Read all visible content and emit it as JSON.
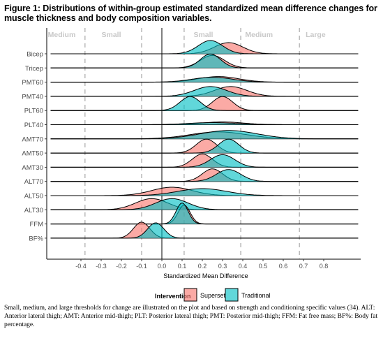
{
  "figure": {
    "title": "Figure 1: Distributions of within-group estimated standardized mean difference changes for muscle thickness and body composition variables.",
    "caption": "Small, medium, and large thresholds for change are illustrated on the plot and based on strength and conditioning specific values (34). ALT: Anterior lateral thigh; AMT: Anterior mid-thigh; PLT: Posterior lateral thigh; PMT: Posterior mid-thigh; FFM: Fat free mass; BF%: Body fat percentage."
  },
  "chart_data": {
    "type": "ridgeline",
    "title": "",
    "xlabel": "Standardized Mean Difference",
    "ylabel": "",
    "xlim": [
      -0.55,
      0.97
    ],
    "x_ticks": [
      -0.4,
      -0.3,
      -0.2,
      -0.1,
      0.0,
      0.1,
      0.2,
      0.3,
      0.4,
      0.5,
      0.6,
      0.7,
      0.8
    ],
    "x_tick_labels": [
      "-0.4",
      "-0.3",
      "-0.2",
      "-0.1",
      "0.0",
      "0.1",
      "0.2",
      "0.3",
      "0.4",
      "0.5",
      "0.6",
      "0.7",
      "0.8"
    ],
    "zero_line": 0.0,
    "thresholds": [
      -0.38,
      -0.1,
      0.11,
      0.39,
      0.68
    ],
    "threshold_labels": [
      {
        "label": "Medium",
        "x": -0.495
      },
      {
        "label": "Small",
        "x": -0.25
      },
      {
        "label": "Small",
        "x": 0.205
      },
      {
        "label": "Medium",
        "x": 0.48
      },
      {
        "label": "Large",
        "x": 0.76
      }
    ],
    "categories": [
      "Bicep",
      "Tricep",
      "PMT60",
      "PMT40",
      "PLT60",
      "PLT40",
      "AMT70",
      "AMT50",
      "AMT30",
      "ALT70",
      "ALT50",
      "ALT30",
      "FFM",
      "BF%"
    ],
    "legend": {
      "title": "Intervention",
      "position": "bottom",
      "entries": [
        "Superset",
        "Traditional"
      ]
    },
    "colors": {
      "Superset": "#F8766D",
      "Traditional": "#00BFC4"
    },
    "series": [
      {
        "name": "Superset",
        "distributions": [
          {
            "category": "Bicep",
            "mean": 0.33,
            "sd": 0.07,
            "height": 0.8
          },
          {
            "category": "Tricep",
            "mean": 0.25,
            "sd": 0.06,
            "height": 0.9
          },
          {
            "category": "PMT60",
            "mean": 0.28,
            "sd": 0.1,
            "height": 0.4
          },
          {
            "category": "PMT40",
            "mean": 0.34,
            "sd": 0.08,
            "height": 0.7
          },
          {
            "category": "PLT60",
            "mean": 0.3,
            "sd": 0.05,
            "height": 1.0
          },
          {
            "category": "PLT40",
            "mean": 0.3,
            "sd": 0.1,
            "height": 0.2
          },
          {
            "category": "AMT70",
            "mean": 0.28,
            "sd": 0.14,
            "height": 0.5
          },
          {
            "category": "AMT50",
            "mean": 0.22,
            "sd": 0.05,
            "height": 1.0
          },
          {
            "category": "AMT30",
            "mean": 0.2,
            "sd": 0.05,
            "height": 0.95
          },
          {
            "category": "ALT70",
            "mean": 0.25,
            "sd": 0.05,
            "height": 0.9
          },
          {
            "category": "ALT50",
            "mean": 0.05,
            "sd": 0.1,
            "height": 0.6
          },
          {
            "category": "ALT30",
            "mean": -0.05,
            "sd": 0.08,
            "height": 0.8
          },
          {
            "category": "FFM",
            "mean": 0.11,
            "sd": 0.03,
            "height": 1.35
          },
          {
            "category": "BF%",
            "mean": -0.1,
            "sd": 0.04,
            "height": 1.15
          }
        ]
      },
      {
        "name": "Traditional",
        "distributions": [
          {
            "category": "Bicep",
            "mean": 0.24,
            "sd": 0.06,
            "height": 0.95
          },
          {
            "category": "Tricep",
            "mean": 0.24,
            "sd": 0.05,
            "height": 1.0
          },
          {
            "category": "PMT60",
            "mean": 0.25,
            "sd": 0.1,
            "height": 0.35
          },
          {
            "category": "PMT40",
            "mean": 0.24,
            "sd": 0.08,
            "height": 0.7
          },
          {
            "category": "PLT60",
            "mean": 0.14,
            "sd": 0.05,
            "height": 1.0
          },
          {
            "category": "PLT40",
            "mean": 0.25,
            "sd": 0.12,
            "height": 0.15
          },
          {
            "category": "AMT70",
            "mean": 0.33,
            "sd": 0.14,
            "height": 0.6
          },
          {
            "category": "AMT50",
            "mean": 0.33,
            "sd": 0.05,
            "height": 1.0
          },
          {
            "category": "AMT30",
            "mean": 0.3,
            "sd": 0.06,
            "height": 0.9
          },
          {
            "category": "ALT70",
            "mean": 0.33,
            "sd": 0.06,
            "height": 0.85
          },
          {
            "category": "ALT50",
            "mean": 0.2,
            "sd": 0.12,
            "height": 0.5
          },
          {
            "category": "ALT30",
            "mean": 0.05,
            "sd": 0.08,
            "height": 0.8
          },
          {
            "category": "FFM",
            "mean": 0.1,
            "sd": 0.03,
            "height": 1.5
          },
          {
            "category": "BF%",
            "mean": -0.03,
            "sd": 0.04,
            "height": 1.1
          }
        ]
      }
    ]
  }
}
